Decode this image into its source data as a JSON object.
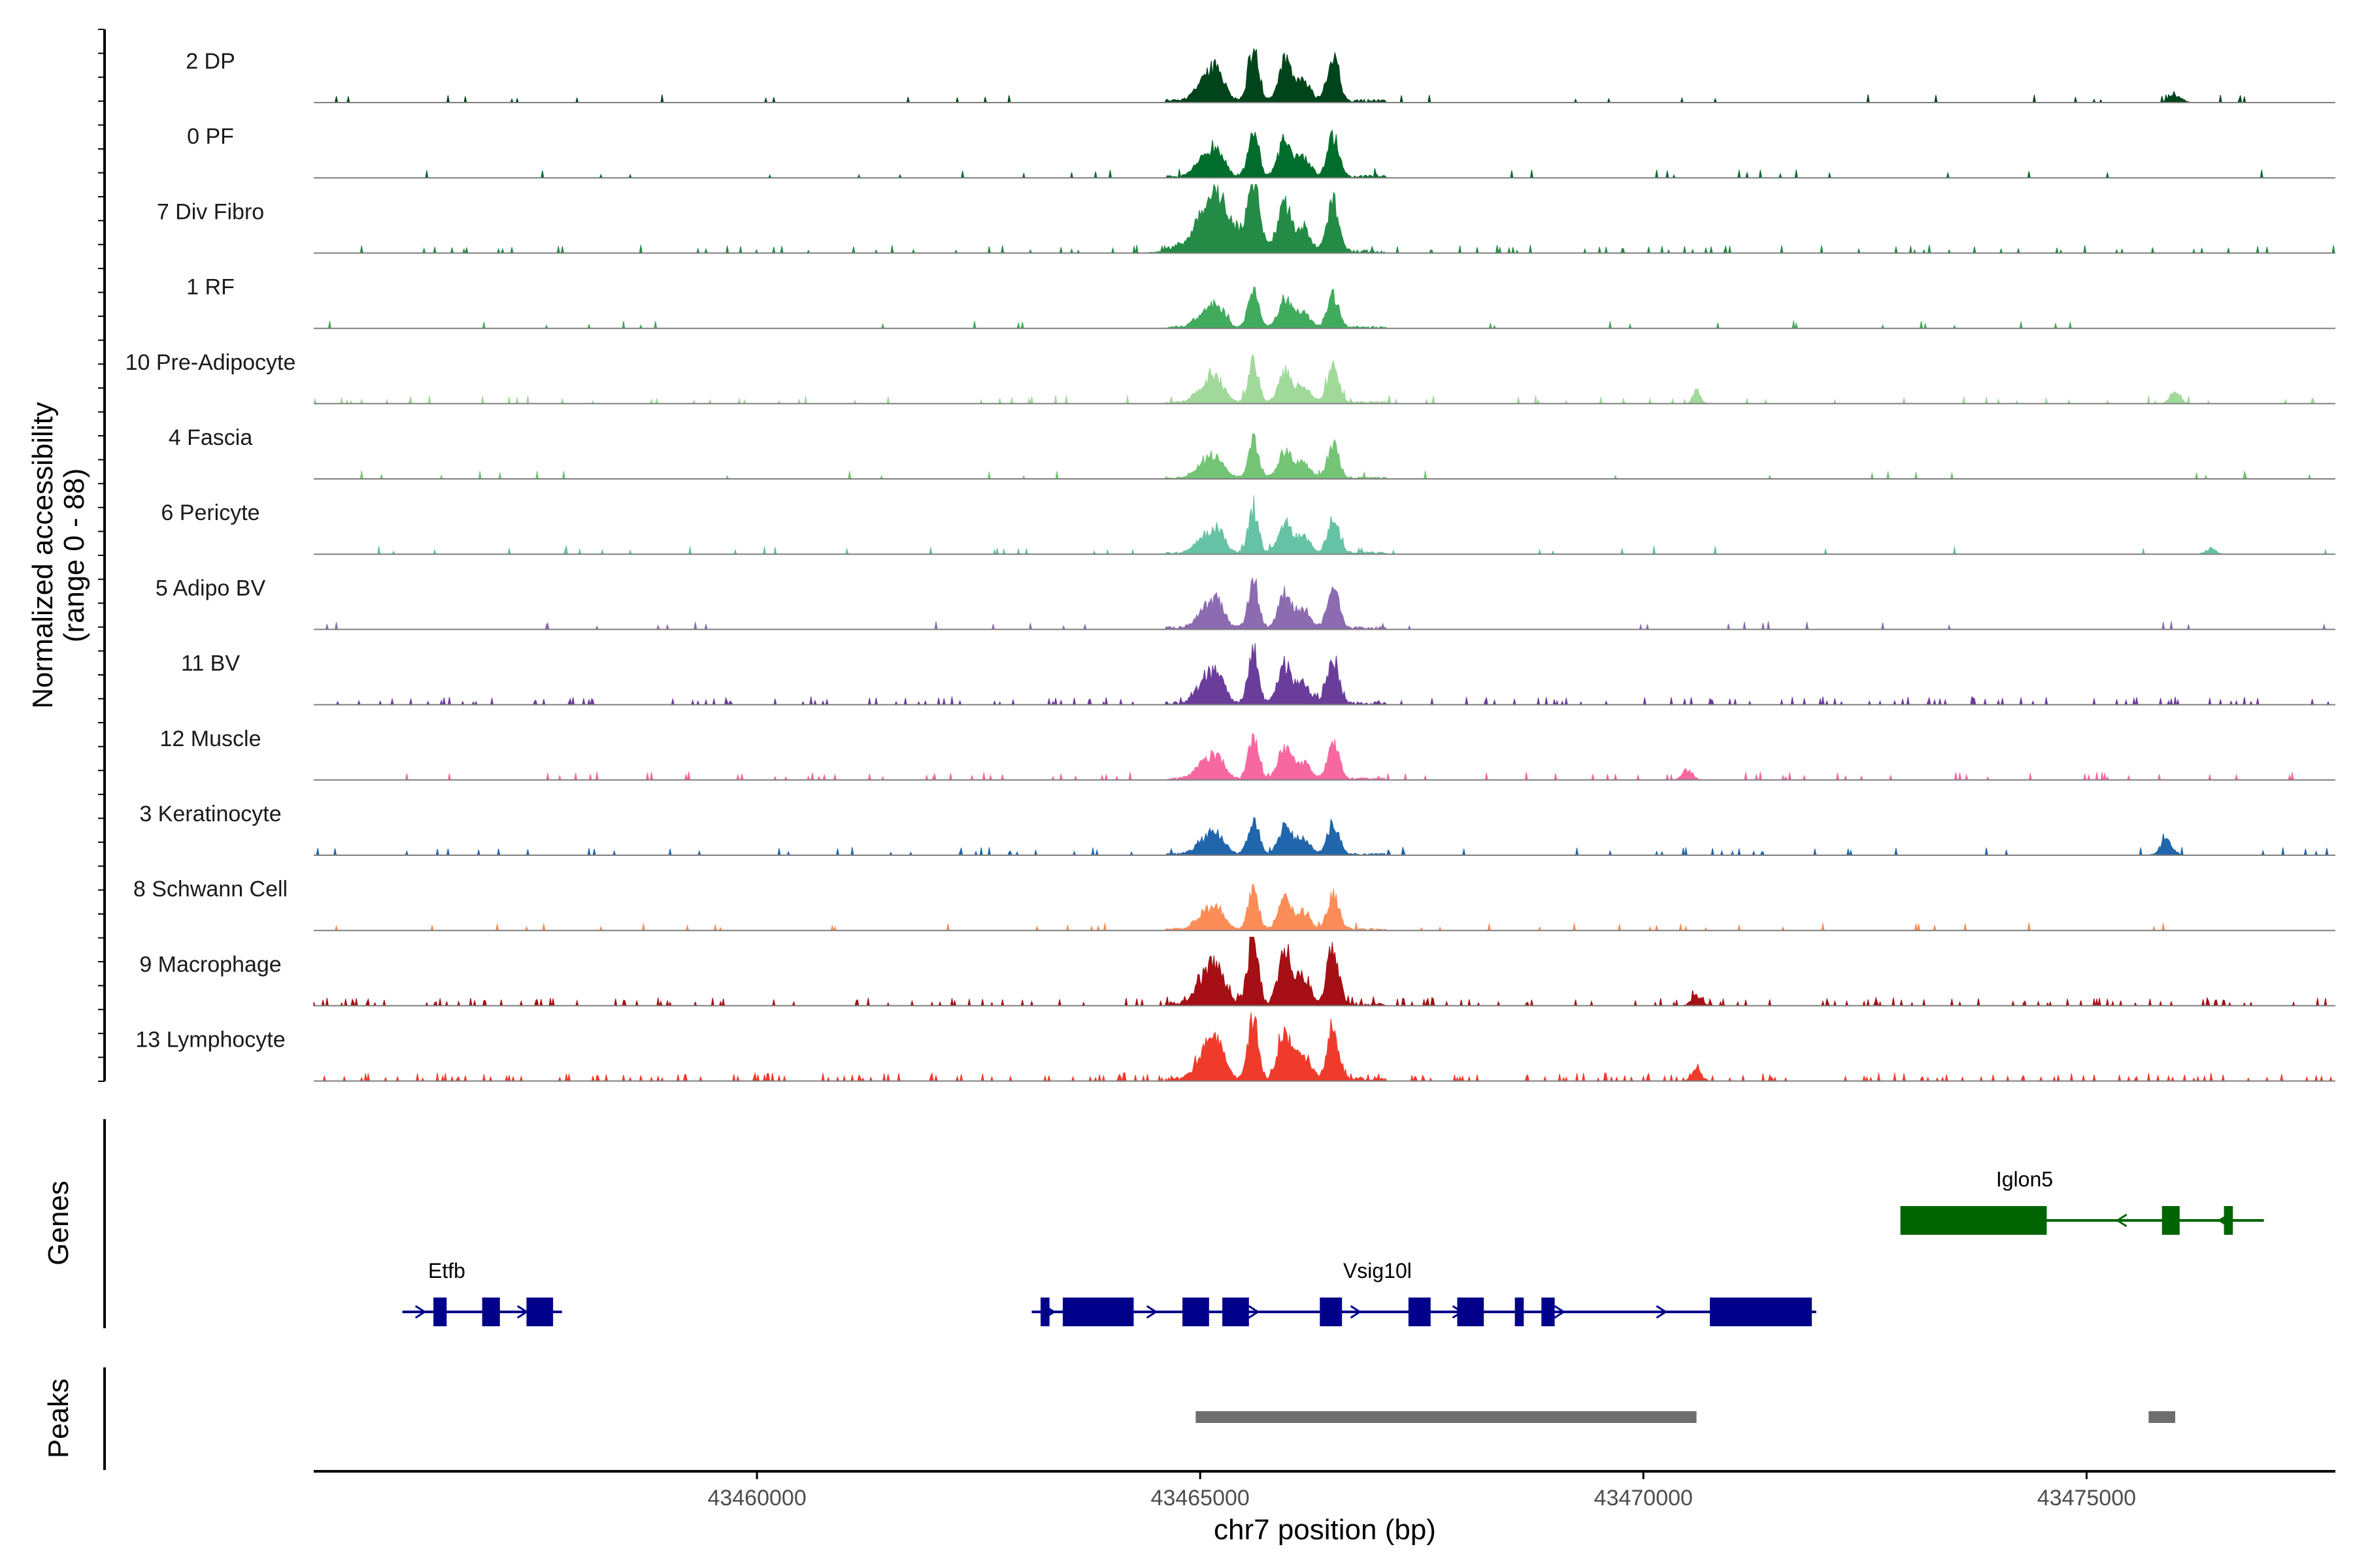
{
  "chart_data": {
    "type": "area",
    "title": "",
    "ylabel_line1": "Normalized accessibility",
    "ylabel_line2": "(range 0 - 88)",
    "y_range": [
      0,
      88
    ],
    "xlabel": "chr7 position (bp)",
    "x_range": [
      43455000,
      43477800
    ],
    "x_ticks": [
      43460000,
      43465000,
      43470000,
      43475000
    ],
    "x_tick_labels": [
      "43460000",
      "43465000",
      "43470000",
      "43475000"
    ],
    "panel_labels": {
      "genes": "Genes",
      "peaks": "Peaks"
    },
    "tracks": [
      {
        "name": "2 DP",
        "color": "#00441b",
        "scale": 0.8,
        "noise": 0.02,
        "extra": [
          [
            43476000,
            0.1,
            100
          ]
        ],
        "seed": 1
      },
      {
        "name": "0 PF",
        "color": "#006d2c",
        "scale": 0.7,
        "noise": 0.02,
        "extra": [],
        "seed": 2
      },
      {
        "name": "7 Div Fibro",
        "color": "#238b45",
        "scale": 0.85,
        "noise": 0.06,
        "extra": [
          [
            43465300,
            0.35,
            450
          ]
        ],
        "seed": 3
      },
      {
        "name": "1 RF",
        "color": "#41ab5d",
        "scale": 0.55,
        "noise": 0.02,
        "extra": [],
        "seed": 4
      },
      {
        "name": "10 Pre-Adipocyte",
        "color": "#a1d99b",
        "scale": 0.6,
        "noise": 0.04,
        "extra": [
          [
            43470600,
            0.18,
            60
          ],
          [
            43476000,
            0.18,
            80
          ]
        ],
        "seed": 5
      },
      {
        "name": "4 Fascia",
        "color": "#74c476",
        "scale": 0.55,
        "noise": 0.02,
        "extra": [],
        "seed": 6
      },
      {
        "name": "6 Pericyte",
        "color": "#66c2a4",
        "scale": 0.6,
        "noise": 0.03,
        "extra": [
          [
            43476400,
            0.08,
            80
          ]
        ],
        "seed": 7
      },
      {
        "name": "5 Adipo BV",
        "color": "#8c6bb1",
        "scale": 0.7,
        "noise": 0.02,
        "extra": [],
        "seed": 8
      },
      {
        "name": "11 BV",
        "color": "#6a3d9a",
        "scale": 0.75,
        "noise": 0.1,
        "extra": [],
        "seed": 9
      },
      {
        "name": "12 Muscle",
        "color": "#f768a1",
        "scale": 0.6,
        "noise": 0.06,
        "extra": [
          [
            43470500,
            0.15,
            80
          ]
        ],
        "seed": 10
      },
      {
        "name": "3 Keratinocyte",
        "color": "#2166ac",
        "scale": 0.55,
        "noise": 0.04,
        "extra": [
          [
            43475900,
            0.2,
            100
          ]
        ],
        "seed": 11
      },
      {
        "name": "8 Schwann Cell",
        "color": "#fc8d59",
        "scale": 0.6,
        "noise": 0.03,
        "extra": [],
        "seed": 12
      },
      {
        "name": "9 Macrophage",
        "color": "#a50f15",
        "scale": 1.0,
        "noise": 0.12,
        "extra": [
          [
            43470600,
            0.15,
            80
          ]
        ],
        "seed": 13
      },
      {
        "name": "13 Lymphocyte",
        "color": "#ef3b2c",
        "scale": 0.9,
        "noise": 0.14,
        "extra": [
          [
            43470600,
            0.15,
            80
          ]
        ],
        "seed": 14
      }
    ],
    "peaks_bp": [
      [
        43464950,
        43470500
      ],
      [
        43470400,
        43470600
      ],
      [
        43475700,
        43476000
      ]
    ],
    "genes": [
      {
        "name": "Etfb",
        "color": "#00008b",
        "row": 2,
        "strand": "+",
        "start": 43456000,
        "end": 43457800,
        "exons": [
          [
            43456350,
            43456500
          ],
          [
            43456900,
            43457100
          ],
          [
            43457400,
            43457700
          ]
        ],
        "label_x": 43456500
      },
      {
        "name": "Vsig10l",
        "color": "#00008b",
        "row": 2,
        "strand": "+",
        "start": 43463100,
        "end": 43471950,
        "exons": [
          [
            43463200,
            43463300
          ],
          [
            43463450,
            43464250
          ],
          [
            43464800,
            43465100
          ],
          [
            43465250,
            43465550
          ],
          [
            43466350,
            43466600
          ],
          [
            43467350,
            43467600
          ],
          [
            43467900,
            43468200
          ],
          [
            43468550,
            43468650
          ],
          [
            43468850,
            43469000
          ],
          [
            43470750,
            43471900
          ]
        ],
        "label_x": 43467000
      },
      {
        "name": "Iglon5",
        "color": "#006400",
        "row": 1,
        "strand": "-",
        "start": 43472900,
        "end": 43477000,
        "exons": [
          [
            43472900,
            43474550
          ],
          [
            43475850,
            43476050
          ],
          [
            43476550,
            43476650
          ]
        ],
        "label_x": 43474300
      }
    ]
  }
}
